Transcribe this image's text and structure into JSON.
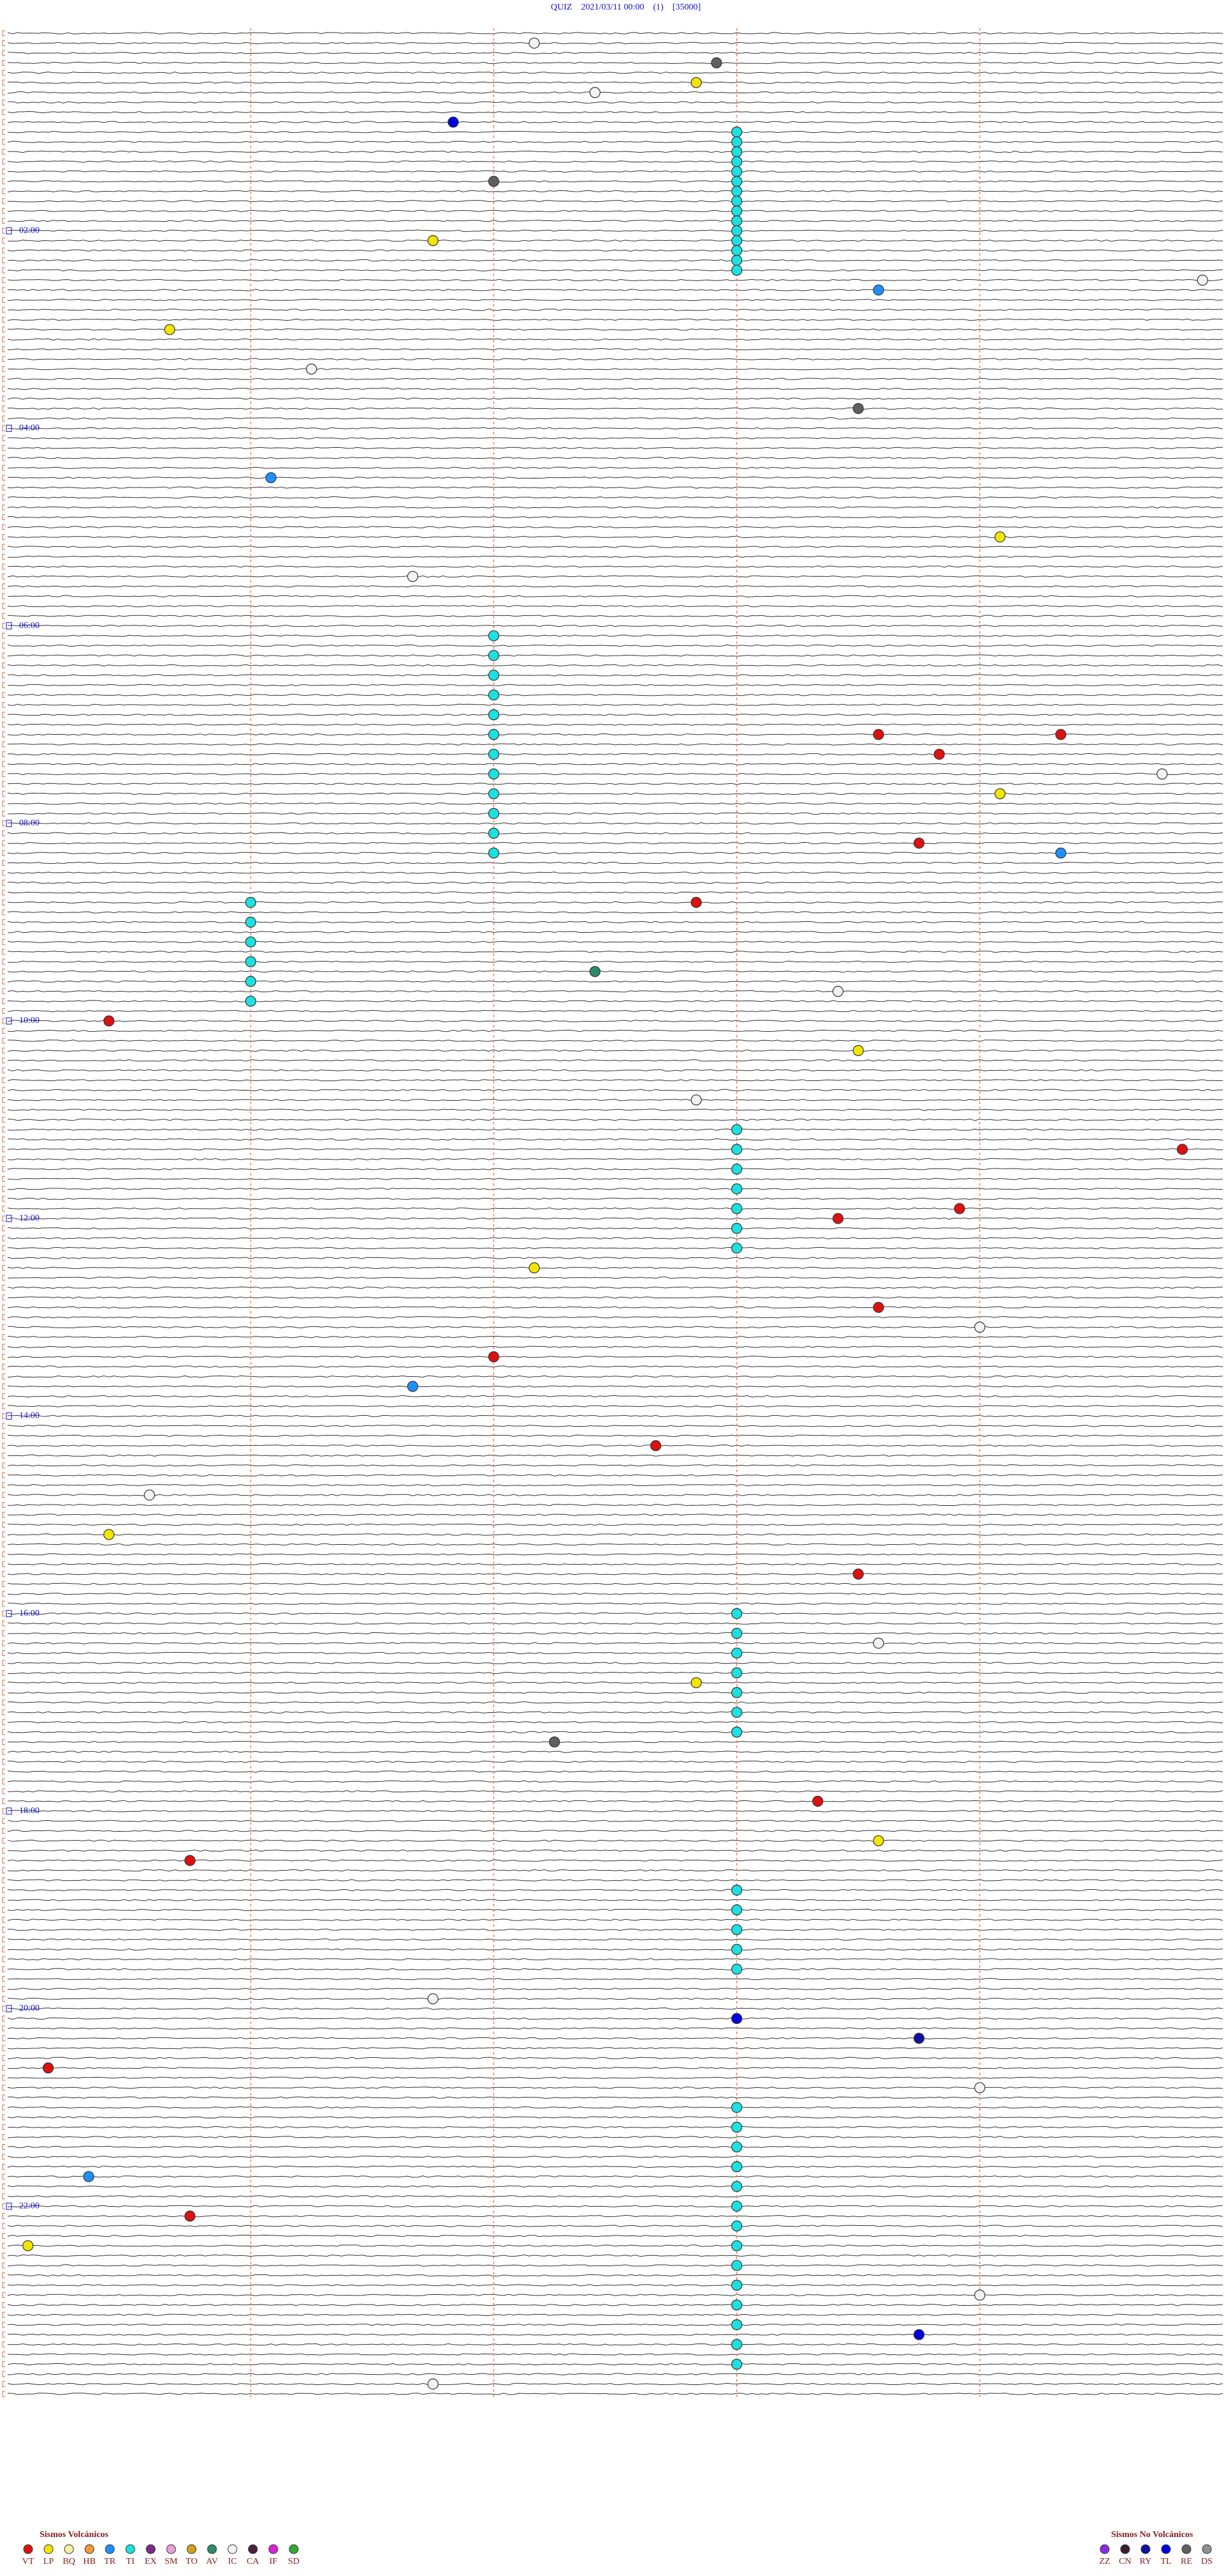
{
  "chart_data": {
    "type": "helicorder",
    "title": "QUIZ    2021/03/11 00:00    (1)    [35000]",
    "hour_labels": [
      "02:00",
      "04:00",
      "06:00",
      "08:00",
      "10:00",
      "12:00",
      "14:00",
      "16:00",
      "18:00",
      "20:00",
      "22:00"
    ],
    "legend_volcanic": {
      "title": "Sismos Volcánicos",
      "items": [
        {
          "name": "VT",
          "color": "#dd1111"
        },
        {
          "name": "LP",
          "color": "#f2e600"
        },
        {
          "name": "BQ",
          "color": "#f6f0a0"
        },
        {
          "name": "HB",
          "color": "#f39a3a"
        },
        {
          "name": "TR",
          "color": "#1e90ff"
        },
        {
          "name": "TI",
          "color": "#1de0e0"
        },
        {
          "name": "EX",
          "color": "#7a2a8a"
        },
        {
          "name": "SM",
          "color": "#e8a0d8"
        },
        {
          "name": "TO",
          "color": "#d4a017"
        },
        {
          "name": "AV",
          "color": "#2e8b6a"
        },
        {
          "name": "IC",
          "color": "#f2f2f2"
        },
        {
          "name": "CA",
          "color": "#4a2040"
        },
        {
          "name": "IF",
          "color": "#e020e0"
        },
        {
          "name": "SD",
          "color": "#33aa33"
        }
      ]
    },
    "legend_nonvolcanic": {
      "title": "Sismos No Volcánicos",
      "items": [
        {
          "name": "ZZ",
          "color": "#8a2be2"
        },
        {
          "name": "CN",
          "color": "#3a2030"
        },
        {
          "name": "RY",
          "color": "#1010a0"
        },
        {
          "name": "TL",
          "color": "#0000dd"
        },
        {
          "name": "RE",
          "color": "#606060"
        },
        {
          "name": "DS",
          "color": "#909090"
        }
      ]
    },
    "events": {
      "time": [
        63.6,
        69.6,
        75.6,
        81.6,
        87.6,
        93.6,
        99.6,
        105.6,
        111.6,
        117.6,
        123.6,
        129.6,
        135.6,
        141.6,
        147.6,
        368.4,
        380.4,
        392.4,
        404.4,
        416.4,
        428.4,
        440.4,
        452.4,
        464.4,
        476.4,
        488.4,
        500.4,
        529.2,
        541.2,
        553.2,
        565.2,
        577.2,
        589.2,
        669.6,
        681.6,
        693.6,
        705.6,
        717.6,
        729.6,
        741.6,
        963.6,
        975.6,
        987.6,
        999.6,
        1011.6,
        1023.6,
        1035.6,
        1131.6,
        1143.6,
        1155.6,
        1167.6,
        1179.6,
        1263.6,
        1275.6,
        1287.6,
        1299.6,
        1311.6,
        1323.6,
        1335.6,
        1347.6,
        1359.6,
        1371.6,
        1383.6,
        1395.6,
        1407.6,
        1419.6,
        8.6,
        21.5,
        33.4,
        38.9,
        56.2,
        92.4,
        128.1,
        155.9,
        160.3,
        180.8,
        205.5,
        232.2,
        271.3,
        310.9,
        332.0,
        430.3,
        431.2,
        442.6,
        455.7,
        466.9,
        496.5,
        503.2,
        531.4,
        572.9,
        586.1,
        600.5,
        622.2,
        651.4,
        683.8,
        718.7,
        724.1,
        752.6,
        778.3,
        790.8,
        806.4,
        824.0,
        861.2,
        888.7,
        912.5,
        940.2,
        982.3,
        1005.4,
        1040.7,
        1078.0,
        1102.3,
        1110.9,
        1196.1,
        1209.6,
        1222.5,
        1236.2,
        1252.8,
        1302.4,
        1326.9,
        1344.1,
        1378.8,
        1402.5,
        1430.1
      ],
      "type": [
        "TI",
        "TI",
        "TI",
        "TI",
        "TI",
        "TI",
        "TI",
        "TI",
        "TI",
        "TI",
        "TI",
        "TI",
        "TI",
        "TI",
        "TI",
        "TI",
        "TI",
        "TI",
        "TI",
        "TI",
        "TI",
        "TI",
        "TI",
        "TI",
        "TI",
        "TI",
        "TI",
        "TI",
        "TI",
        "TI",
        "TI",
        "TI",
        "TI",
        "TI",
        "TI",
        "TI",
        "TI",
        "TI",
        "TI",
        "TI",
        "TI",
        "TI",
        "TI",
        "TI",
        "TI",
        "TI",
        "TI",
        "TI",
        "TI",
        "TI",
        "TI",
        "TI",
        "TI",
        "TI",
        "TI",
        "TI",
        "TI",
        "TI",
        "TI",
        "TI",
        "TI",
        "TI",
        "TI",
        "TI",
        "TI",
        "TI",
        "IC",
        "RE",
        "LP",
        "IC",
        "TL",
        "RE",
        "LP",
        "IC",
        "TR",
        "LP",
        "IC",
        "RE",
        "TR",
        "LP",
        "IC",
        "VT",
        "VT",
        "VT",
        "IC",
        "LP",
        "VT",
        "TR",
        "VT",
        "AV",
        "IC",
        "VT",
        "LP",
        "IC",
        "VT",
        "VT",
        "VT",
        "LP",
        "VT",
        "IC",
        "VT",
        "TR",
        "VT",
        "IC",
        "LP",
        "VT",
        "IC",
        "LP",
        "RE",
        "VT",
        "LP",
        "VT",
        "IC",
        "TL",
        "RY",
        "VT",
        "IC",
        "TR",
        "VT",
        "LP",
        "IC",
        "TL",
        "IC"
      ]
    }
  }
}
